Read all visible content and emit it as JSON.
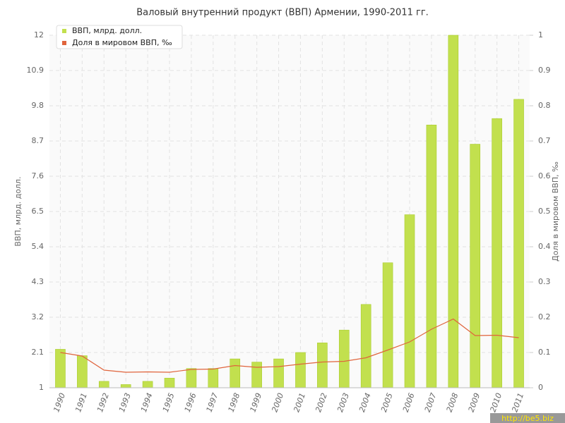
{
  "chart_data": {
    "type": "bar",
    "title": "Валовый внутренний продукт (ВВП) Армении, 1990-2011 гг.",
    "ylabel": "ВВП, млрд. долл.",
    "y2label": "Доля в мировом ВВП, ‰",
    "watermark": "http://be5.biz",
    "categories": [
      "1990",
      "1991",
      "1992",
      "1993",
      "1994",
      "1995",
      "1996",
      "1997",
      "1998",
      "1999",
      "2000",
      "2001",
      "2002",
      "2003",
      "2004",
      "2005",
      "2006",
      "2007",
      "2008",
      "2009",
      "2010",
      "2011"
    ],
    "series": [
      {
        "name": "ВВП, млрд. долл.",
        "type": "bar",
        "color": "#c2e04e",
        "values": [
          2.2,
          2.0,
          1.2,
          1.1,
          1.2,
          1.3,
          1.6,
          1.6,
          1.9,
          1.8,
          1.9,
          2.1,
          2.4,
          2.8,
          3.6,
          4.9,
          6.4,
          9.2,
          12,
          8.6,
          9.4,
          10.0
        ]
      },
      {
        "name": "Доля в мировом ВВП, ‰",
        "type": "line",
        "axis": "y2",
        "color": "#e0643c",
        "values": [
          0.1,
          0.09,
          0.05,
          0.044,
          0.045,
          0.044,
          0.052,
          0.053,
          0.063,
          0.058,
          0.06,
          0.067,
          0.073,
          0.075,
          0.085,
          0.107,
          0.13,
          0.166,
          0.195,
          0.148,
          0.149,
          0.142
        ]
      }
    ],
    "ylim": [
      1,
      12
    ],
    "yticks": [
      1,
      2.1,
      3.2,
      4.3,
      5.4,
      6.5,
      7.6,
      8.7,
      9.8,
      10.9,
      12
    ],
    "y2lim": [
      0,
      1
    ],
    "y2ticks": [
      0,
      0.1,
      0.2,
      0.3,
      0.4,
      0.5,
      0.6,
      0.7,
      0.8,
      0.9,
      1
    ],
    "grid": true,
    "legend": "top-left"
  }
}
